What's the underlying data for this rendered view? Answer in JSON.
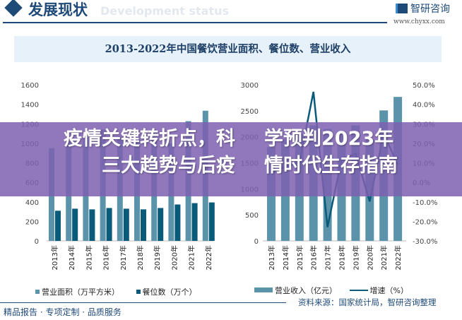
{
  "header": {
    "title": "发展现状",
    "subtitle": "Development status",
    "logo": "智研咨询",
    "url": "www.chyxx.com"
  },
  "chart_title": "2013-2022年中国餐饮营业面积、餐位数、营业收入",
  "chart_data": [
    {
      "type": "bar",
      "categories": [
        "2013年",
        "2014年",
        "2015年",
        "2016年",
        "2017年",
        "2018年",
        "2019年",
        "2020年",
        "2021年",
        "2022年"
      ],
      "ylim": [
        0,
        1600
      ],
      "yticks": [
        "0",
        "200",
        "400",
        "600",
        "800",
        "1000",
        "1200",
        "1400",
        "1600"
      ],
      "series": [
        {
          "name": "营业面积（万平方米）",
          "color": "#5b93aa",
          "values": [
            950,
            1020,
            1060,
            1141,
            1069,
            1040,
            1141,
            1000,
            1227,
            1334
          ]
        },
        {
          "name": "餐位数（万个）",
          "color": "#0a5a7a",
          "values": [
            309,
            330,
            323,
            337,
            330,
            323,
            337,
            373,
            387,
            394
          ]
        }
      ]
    },
    {
      "type": "bar+line",
      "categories": [
        "2013年",
        "2014年",
        "2015年",
        "2016年",
        "2017年",
        "2018年",
        "2019年",
        "2020年",
        "2021年",
        "2022年"
      ],
      "ylim": [
        0,
        3000
      ],
      "yticks": [
        "0",
        "500",
        "1000",
        "1500",
        "2000",
        "2500",
        "3000"
      ],
      "y2lim": [
        -30,
        50
      ],
      "y2ticks": [
        "-30.0%",
        "-20.0%",
        "-10.0%",
        "0.0%",
        "10.0%",
        "20.0%",
        "30.0%",
        "40.0%",
        "50.0%"
      ],
      "series": [
        {
          "name": "营业收入（亿元）",
          "type": "bar",
          "color": "#5b93aa",
          "values": [
            1800,
            1950,
            2050,
            2219,
            2150,
            2100,
            2219,
            1950,
            2507,
            2767
          ]
        },
        {
          "name": "增速（%）",
          "type": "line",
          "axis": "right",
          "color": "#0a5a7a",
          "values": [
            5,
            8,
            10,
            46.4,
            -23,
            11.7,
            14.7,
            -9.8,
            25,
            9
          ]
        }
      ]
    }
  ],
  "footer": {
    "tagline": "精品报告 · 专项定制 · 品质服务",
    "source": "资料来源：国家统计局，智研咨询整理"
  },
  "banner": {
    "line1": "疫情关键转折点，科学预判2023年",
    "line2": "三大趋势与后疫情时代生存指南"
  }
}
